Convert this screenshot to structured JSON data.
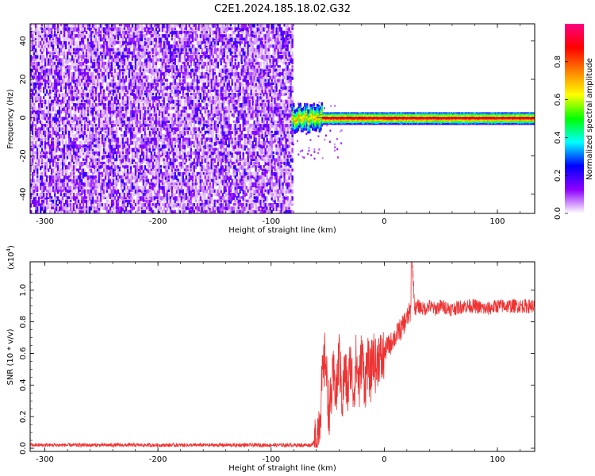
{
  "title": "C2E1.2024.185.18.02.G32",
  "chart_data": [
    {
      "type": "heatmap",
      "xlabel": "Height of straight line (km)",
      "ylabel": "Frequency (Hz)",
      "xlim": [
        -313,
        133
      ],
      "ylim": [
        -50,
        49
      ],
      "xticks": [
        -300,
        -200,
        -100,
        0,
        100
      ],
      "yticks": [
        -40,
        -20,
        0,
        20,
        40
      ],
      "noise_region_x": [
        -313,
        -82
      ],
      "signal_region_x": [
        -82,
        133
      ],
      "signal_center_freq": 0,
      "colorbar": {
        "label": "Normalized spectral amplitude",
        "range": [
          0,
          1
        ],
        "ticks": [
          "0.0",
          "0.2",
          "0.4",
          "0.6",
          "0.8"
        ],
        "colors": [
          "#ffffff",
          "#8f00ff",
          "#0000ff",
          "#00ffff",
          "#00ff00",
          "#ffff00",
          "#ff8000",
          "#ff0000",
          "#ff0080"
        ]
      },
      "grid": false
    },
    {
      "type": "line",
      "xlabel": "Height of straight line (km)",
      "ylabel": "SNR (10 * v/v)",
      "yscale_label": "(x10",
      "yscale_exp": "4",
      "yscale_close": ")",
      "xlim": [
        -313,
        133
      ],
      "ylim": [
        -0.02,
        1.18
      ],
      "xticks": [
        -300,
        -200,
        -100,
        0,
        100
      ],
      "yticks": [
        "0.0",
        "0.2",
        "0.4",
        "0.6",
        "0.8",
        "1.0"
      ],
      "series_color": "#ee3333",
      "series": [
        {
          "x": [
            -313,
            -280,
            -250,
            -200,
            -150,
            -100,
            -75,
            -65,
            -60,
            -57,
            -55,
            -52,
            -50,
            -48,
            -45,
            -42,
            -40,
            -37,
            -35,
            -32,
            -30,
            -27,
            -25,
            -22,
            -20,
            -17,
            -15,
            -12,
            -10,
            -7,
            -5,
            -2,
            0,
            3,
            5,
            8,
            10,
            13,
            15,
            18,
            20,
            22,
            24,
            25,
            27,
            30,
            35,
            40,
            45,
            50,
            60,
            70,
            80,
            90,
            100,
            110,
            120,
            133
          ],
          "values": [
            0.02,
            0.02,
            0.02,
            0.02,
            0.02,
            0.02,
            0.02,
            0.02,
            0.05,
            0.2,
            0.4,
            0.6,
            0.3,
            0.25,
            0.45,
            0.35,
            0.6,
            0.3,
            0.5,
            0.35,
            0.55,
            0.35,
            0.55,
            0.4,
            0.6,
            0.4,
            0.55,
            0.45,
            0.6,
            0.5,
            0.6,
            0.55,
            0.6,
            0.65,
            0.65,
            0.7,
            0.7,
            0.75,
            0.75,
            0.8,
            0.82,
            0.85,
            0.87,
            1.15,
            0.88,
            0.9,
            0.88,
            0.9,
            0.88,
            0.9,
            0.88,
            0.9,
            0.9,
            0.88,
            0.9,
            0.9,
            0.9,
            0.9
          ]
        }
      ],
      "grid": false
    }
  ]
}
